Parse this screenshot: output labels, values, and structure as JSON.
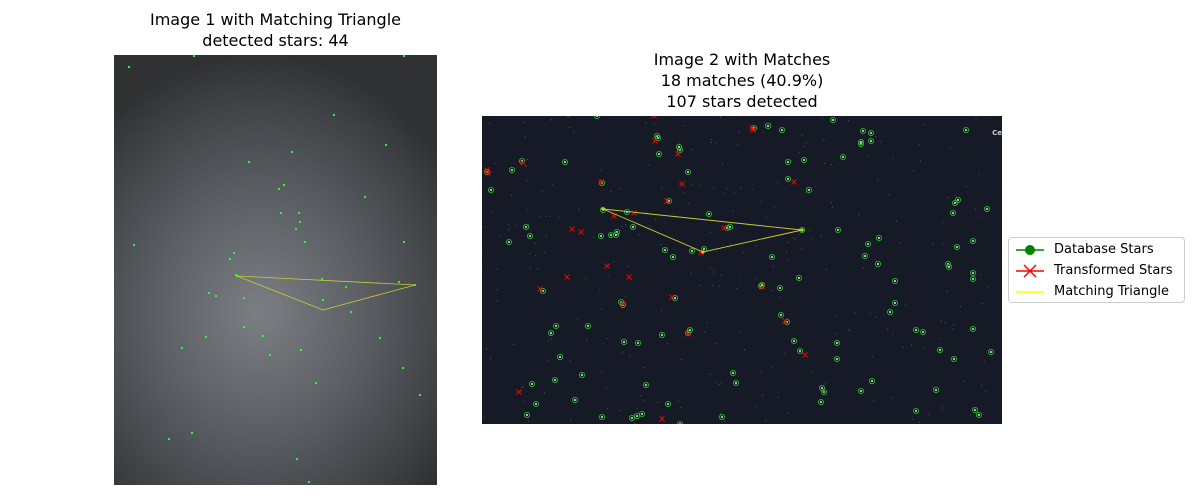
{
  "titles": {
    "image1": "Image 1 with Matching Triangle\ndetected stars: 44",
    "image2": "Image 2 with Matches\n18 matches (40.9%)\n107 stars detected"
  },
  "image2_corner_label": "Ce",
  "legend": {
    "items": [
      {
        "label": "Database Stars",
        "color": "#008000",
        "marker": "circle-line"
      },
      {
        "label": "Transformed Stars",
        "color": "#ff0000",
        "marker": "x-line"
      },
      {
        "label": "Matching Triangle",
        "color": "#ffff00",
        "marker": "line"
      }
    ]
  },
  "colors": {
    "detected_star": "#33ff33",
    "database_star": "#22cc22",
    "transformed_star": "#ff0000",
    "triangle": "#cccc33",
    "image1_background": "#5c6064",
    "image2_background": "#151a26"
  },
  "chart_data": [
    {
      "type": "scatter",
      "name": "image1",
      "xlim": [
        0,
        323
      ],
      "ylim": [
        430,
        0
      ],
      "detected_stars": [
        [
          15,
          12
        ],
        [
          80,
          1
        ],
        [
          290,
          1
        ],
        [
          220,
          60
        ],
        [
          272,
          90
        ],
        [
          178,
          97
        ],
        [
          135,
          107
        ],
        [
          170,
          130
        ],
        [
          165,
          134
        ],
        [
          251,
          142
        ],
        [
          167,
          158
        ],
        [
          185,
          158
        ],
        [
          186,
          167
        ],
        [
          191,
          187
        ],
        [
          182,
          174
        ],
        [
          20,
          190
        ],
        [
          120,
          198
        ],
        [
          116,
          204
        ],
        [
          290,
          187
        ],
        [
          123,
          221
        ],
        [
          208,
          224
        ],
        [
          95,
          238
        ],
        [
          102,
          241
        ],
        [
          130,
          243
        ],
        [
          232,
          232
        ],
        [
          301,
          230
        ],
        [
          285,
          227
        ],
        [
          237,
          257
        ],
        [
          68,
          293
        ],
        [
          130,
          272
        ],
        [
          92,
          282
        ],
        [
          149,
          281
        ],
        [
          187,
          295
        ],
        [
          266,
          283
        ],
        [
          202,
          328
        ],
        [
          289,
          313
        ],
        [
          306,
          340
        ],
        [
          55,
          384
        ],
        [
          78,
          378
        ],
        [
          183,
          404
        ],
        [
          195,
          427
        ],
        [
          209,
          245
        ],
        [
          122,
          220
        ],
        [
          156,
          300
        ]
      ],
      "triangle": [
        [
          123,
          221
        ],
        [
          301,
          230
        ],
        [
          209,
          255
        ]
      ]
    },
    {
      "type": "scatter",
      "name": "image2",
      "xlim": [
        0,
        520
      ],
      "ylim": [
        308,
        0
      ],
      "database_stars": [
        [
          115,
          0
        ],
        [
          175,
          20
        ],
        [
          177,
          38
        ],
        [
          198,
          34
        ],
        [
          197,
          31
        ],
        [
          176,
          22
        ],
        [
          286,
          10
        ],
        [
          272,
          12
        ],
        [
          300,
          14
        ],
        [
          351,
          4
        ],
        [
          389,
          17
        ],
        [
          379,
          28
        ],
        [
          306,
          46
        ],
        [
          327,
          74
        ],
        [
          306,
          63
        ],
        [
          322,
          44
        ],
        [
          389,
          25
        ],
        [
          361,
          41
        ],
        [
          381,
          15
        ],
        [
          206,
          56
        ],
        [
          120,
          67
        ],
        [
          5,
          56
        ],
        [
          30,
          54
        ],
        [
          40,
          45
        ],
        [
          83,
          46
        ],
        [
          187,
          85
        ],
        [
          145,
          96
        ],
        [
          121,
          94
        ],
        [
          227,
          98
        ],
        [
          245,
          112
        ],
        [
          9,
          74
        ],
        [
          44,
          111
        ],
        [
          48,
          120
        ],
        [
          27,
          126
        ],
        [
          119,
          120
        ],
        [
          129,
          119
        ],
        [
          135,
          116
        ],
        [
          134,
          119
        ],
        [
          151,
          111
        ],
        [
          183,
          134
        ],
        [
          210,
          135
        ],
        [
          191,
          141
        ],
        [
          222,
          133
        ],
        [
          248,
          111
        ],
        [
          290,
          141
        ],
        [
          320,
          114
        ],
        [
          356,
          114
        ],
        [
          386,
          128
        ],
        [
          397,
          122
        ],
        [
          317,
          162
        ],
        [
          280,
          169
        ],
        [
          383,
          140
        ],
        [
          396,
          148
        ],
        [
          413,
          165
        ],
        [
          413,
          187
        ],
        [
          408,
          196
        ],
        [
          466,
          148
        ],
        [
          491,
          125
        ],
        [
          475,
          131
        ],
        [
          473,
          87
        ],
        [
          476,
          84
        ],
        [
          471,
          97
        ],
        [
          484,
          14
        ],
        [
          379,
          26
        ],
        [
          467,
          151
        ],
        [
          491,
          157
        ],
        [
          491,
          163
        ],
        [
          505,
          93
        ],
        [
          61,
          175
        ],
        [
          74,
          210
        ],
        [
          69,
          217
        ],
        [
          106,
          210
        ],
        [
          139,
          186
        ],
        [
          141,
          189
        ],
        [
          193,
          182
        ],
        [
          142,
          226
        ],
        [
          180,
          219
        ],
        [
          208,
          214
        ],
        [
          206,
          217
        ],
        [
          156,
          227
        ],
        [
          298,
          172
        ],
        [
          279,
          170
        ],
        [
          312,
          225
        ],
        [
          318,
          235
        ],
        [
          355,
          227
        ],
        [
          355,
          243
        ],
        [
          299,
          199
        ],
        [
          305,
          206
        ],
        [
          434,
          214
        ],
        [
          441,
          216
        ],
        [
          458,
          234
        ],
        [
          491,
          213
        ],
        [
          472,
          243
        ],
        [
          509,
          236
        ],
        [
          73,
          264
        ],
        [
          78,
          241
        ],
        [
          100,
          259
        ],
        [
          50,
          268
        ],
        [
          54,
          288
        ],
        [
          45,
          299
        ],
        [
          93,
          284
        ],
        [
          120,
          301
        ],
        [
          150,
          302
        ],
        [
          155,
          300
        ],
        [
          160,
          298
        ],
        [
          164,
          269
        ],
        [
          186,
          288
        ],
        [
          198,
          308
        ],
        [
          240,
          301
        ],
        [
          251,
          257
        ],
        [
          254,
          267
        ],
        [
          340,
          272
        ],
        [
          342,
          276
        ],
        [
          339,
          286
        ],
        [
          379,
          275
        ],
        [
          434,
          295
        ],
        [
          454,
          274
        ],
        [
          493,
          294
        ],
        [
          497,
          299
        ],
        [
          390,
          265
        ]
      ],
      "transformed_stars": [
        [
          6,
          57
        ],
        [
          41,
          47
        ],
        [
          5,
          54
        ],
        [
          119,
          66
        ],
        [
          200,
          68
        ],
        [
          196,
          38
        ],
        [
          173,
          25
        ],
        [
          271,
          14
        ],
        [
          312,
          66
        ],
        [
          185,
          85
        ],
        [
          242,
          112
        ],
        [
          152,
          97
        ],
        [
          90,
          113
        ],
        [
          99,
          116
        ],
        [
          85,
          161
        ],
        [
          125,
          150
        ],
        [
          147,
          161
        ],
        [
          58,
          173
        ],
        [
          219,
          137
        ],
        [
          280,
          171
        ],
        [
          190,
          181
        ],
        [
          141,
          188
        ],
        [
          206,
          218
        ],
        [
          323,
          239
        ],
        [
          303,
          205
        ],
        [
          37,
          276
        ],
        [
          180,
          303
        ],
        [
          172,
          0
        ],
        [
          270,
          12
        ],
        [
          132,
          100
        ]
      ],
      "triangle": [
        [
          121,
          93
        ],
        [
          320,
          114
        ],
        [
          221,
          136
        ]
      ]
    }
  ]
}
